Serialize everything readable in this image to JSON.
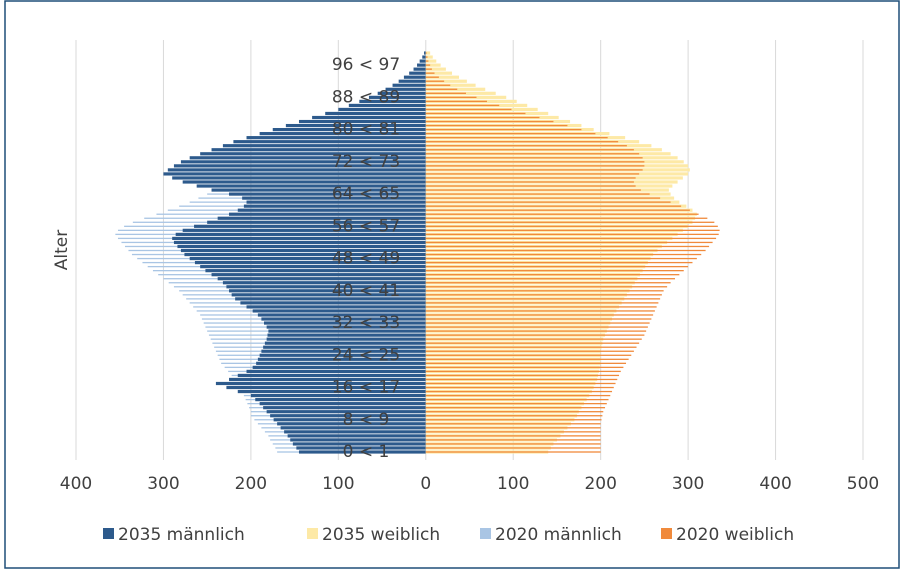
{
  "chart_data": {
    "type": "population-pyramid",
    "y_label": "Alter",
    "categories": [
      "0 < 1",
      null,
      null,
      null,
      null,
      null,
      null,
      null,
      "8 < 9",
      null,
      null,
      null,
      null,
      null,
      null,
      null,
      "16 < 17",
      null,
      null,
      null,
      null,
      null,
      null,
      null,
      "24 < 25",
      null,
      null,
      null,
      null,
      null,
      null,
      null,
      "32 < 33",
      null,
      null,
      null,
      null,
      null,
      null,
      null,
      "40 < 41",
      null,
      null,
      null,
      null,
      null,
      null,
      null,
      "48 < 49",
      null,
      null,
      null,
      null,
      null,
      null,
      null,
      "56 < 57",
      null,
      null,
      null,
      null,
      null,
      null,
      null,
      "64 < 65",
      null,
      null,
      null,
      null,
      null,
      null,
      null,
      "72 < 73",
      null,
      null,
      null,
      null,
      null,
      null,
      null,
      "80 < 81",
      null,
      null,
      null,
      null,
      null,
      null,
      null,
      "88 < 89",
      null,
      null,
      null,
      null,
      null,
      null,
      null,
      "96 < 97",
      null,
      null,
      null
    ],
    "series": [
      {
        "name": "2035 männlich",
        "color": "#2d5a8c",
        "values": [
          -145,
          -148,
          -152,
          -155,
          -158,
          -162,
          -166,
          -170,
          -174,
          -178,
          -182,
          -186,
          -190,
          -195,
          -200,
          -215,
          -228,
          -240,
          -225,
          -215,
          -205,
          -198,
          -194,
          -192,
          -190,
          -188,
          -186,
          -184,
          -182,
          -181,
          -180,
          -182,
          -185,
          -188,
          -192,
          -198,
          -205,
          -212,
          -218,
          -222,
          -225,
          -228,
          -232,
          -238,
          -245,
          -252,
          -258,
          -264,
          -270,
          -276,
          -280,
          -284,
          -288,
          -290,
          -286,
          -278,
          -265,
          -250,
          -238,
          -225,
          -215,
          -208,
          -205,
          -210,
          -225,
          -245,
          -262,
          -278,
          -290,
          -300,
          -295,
          -288,
          -280,
          -270,
          -258,
          -245,
          -232,
          -220,
          -205,
          -190,
          -175,
          -160,
          -145,
          -130,
          -115,
          -100,
          -88,
          -76,
          -65,
          -55,
          -46,
          -38,
          -31,
          -25,
          -19,
          -14,
          -10,
          -7,
          -4,
          -2
        ]
      },
      {
        "name": "2035 weiblich",
        "color": "#fde9a6",
        "values": [
          140,
          143,
          146,
          150,
          154,
          158,
          162,
          166,
          170,
          173,
          175,
          178,
          181,
          184,
          187,
          190,
          192,
          194,
          196,
          197,
          198,
          199,
          200,
          200,
          200,
          200,
          201,
          202,
          203,
          205,
          207,
          209,
          211,
          213,
          215,
          218,
          221,
          224,
          227,
          230,
          233,
          236,
          239,
          242,
          245,
          248,
          251,
          254,
          257,
          260,
          265,
          270,
          276,
          282,
          288,
          294,
          300,
          305,
          308,
          310,
          305,
          298,
          290,
          284,
          280,
          278,
          282,
          288,
          294,
          300,
          302,
          300,
          295,
          288,
          280,
          270,
          258,
          244,
          228,
          210,
          192,
          178,
          165,
          152,
          140,
          128,
          116,
          104,
          92,
          80,
          68,
          57,
          47,
          38,
          30,
          23,
          17,
          12,
          8,
          5
        ]
      },
      {
        "name": "2020 männlich",
        "color": "#a9c5e4",
        "values": [
          -170,
          -172,
          -175,
          -178,
          -180,
          -184,
          -188,
          -192,
          -196,
          -200,
          -200,
          -202,
          -204,
          -206,
          -208,
          -210,
          -212,
          -215,
          -218,
          -222,
          -226,
          -230,
          -234,
          -236,
          -238,
          -240,
          -242,
          -244,
          -246,
          -248,
          -250,
          -252,
          -254,
          -256,
          -258,
          -262,
          -266,
          -270,
          -274,
          -278,
          -282,
          -288,
          -294,
          -300,
          -306,
          -312,
          -318,
          -324,
          -330,
          -336,
          -340,
          -344,
          -348,
          -352,
          -355,
          -352,
          -345,
          -335,
          -322,
          -308,
          -295,
          -282,
          -270,
          -260,
          -250,
          -242,
          -236,
          -232,
          -230,
          -228,
          -226,
          -224,
          -220,
          -215,
          -210,
          -205,
          -200,
          -195,
          -188,
          -178,
          -165,
          -150,
          -135,
          -118,
          -100,
          -84,
          -70,
          -58,
          -48,
          -38,
          -30,
          -23,
          -17,
          -12,
          -8,
          -5,
          -3,
          -2,
          -1,
          -1
        ]
      },
      {
        "name": "2020 weiblich",
        "color": "#f08a3c",
        "values": [
          200,
          200,
          200,
          200,
          200,
          200,
          200,
          200,
          201,
          202,
          203,
          205,
          207,
          209,
          211,
          213,
          215,
          217,
          219,
          221,
          223,
          226,
          229,
          232,
          235,
          238,
          241,
          244,
          247,
          250,
          252,
          254,
          256,
          258,
          260,
          262,
          264,
          266,
          268,
          270,
          272,
          276,
          280,
          285,
          290,
          295,
          300,
          305,
          310,
          315,
          320,
          324,
          328,
          332,
          335,
          336,
          334,
          330,
          322,
          312,
          302,
          292,
          280,
          268,
          256,
          246,
          240,
          238,
          240,
          244,
          248,
          250,
          250,
          248,
          244,
          238,
          230,
          220,
          208,
          194,
          178,
          162,
          146,
          130,
          114,
          98,
          84,
          70,
          58,
          46,
          36,
          28,
          21,
          15,
          10,
          7,
          5,
          3,
          2,
          1
        ]
      }
    ],
    "xlim": [
      -400,
      500
    ],
    "xticks": [
      {
        "value": -400,
        "label": "400"
      },
      {
        "value": -300,
        "label": "300"
      },
      {
        "value": -200,
        "label": "200"
      },
      {
        "value": -100,
        "label": "100"
      },
      0,
      100,
      200,
      300,
      400,
      500
    ],
    "grid": true,
    "legend": "bottom"
  }
}
